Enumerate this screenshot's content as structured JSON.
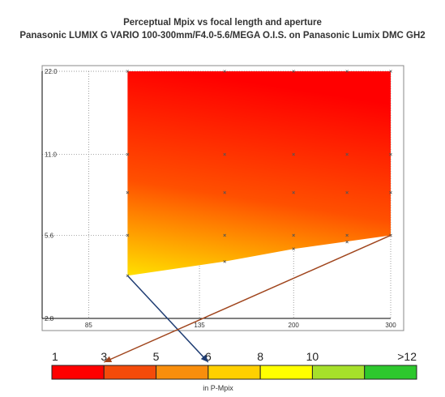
{
  "chart_data": {
    "type": "heatmap",
    "title": "Perceptual Mpix vs focal length and aperture",
    "subtitle": "Panasonic LUMIX G VARIO 100-300mm/F4.0-5.6/MEGA O.I.S. on Panasonic Lumix DMC GH2",
    "x_axis": {
      "scale": "log",
      "range": [
        70,
        300
      ],
      "ticks": [
        "85",
        "135",
        "200",
        "300"
      ]
    },
    "y_axis": {
      "scale": "log",
      "range": [
        2.8,
        22.0
      ],
      "ticks": [
        "2.8",
        "5.6",
        "11.0",
        "22.0"
      ]
    },
    "grid": true,
    "region": {
      "min_aperture": 22.0,
      "max_aperture_curve": [
        [
          100,
          4.0
        ],
        [
          150,
          4.5
        ],
        [
          200,
          5.0
        ],
        [
          300,
          5.6
        ]
      ]
    },
    "samples": [
      {
        "focal": 100,
        "aperture": 4.0,
        "mpix": 5.8
      },
      {
        "focal": 100,
        "aperture": 5.6,
        "mpix": 5.0
      },
      {
        "focal": 100,
        "aperture": 8.0,
        "mpix": 4.0
      },
      {
        "focal": 100,
        "aperture": 11.0,
        "mpix": 3.0
      },
      {
        "focal": 100,
        "aperture": 22.0,
        "mpix": 1.8
      },
      {
        "focal": 150,
        "aperture": 4.5,
        "mpix": 5.0
      },
      {
        "focal": 150,
        "aperture": 5.6,
        "mpix": 4.5
      },
      {
        "focal": 150,
        "aperture": 8.0,
        "mpix": 3.6
      },
      {
        "focal": 150,
        "aperture": 11.0,
        "mpix": 2.8
      },
      {
        "focal": 150,
        "aperture": 22.0,
        "mpix": 1.5
      },
      {
        "focal": 200,
        "aperture": 5.0,
        "mpix": 4.2
      },
      {
        "focal": 200,
        "aperture": 5.6,
        "mpix": 4.0
      },
      {
        "focal": 200,
        "aperture": 8.0,
        "mpix": 3.2
      },
      {
        "focal": 200,
        "aperture": 11.0,
        "mpix": 2.5
      },
      {
        "focal": 200,
        "aperture": 22.0,
        "mpix": 1.3
      },
      {
        "focal": 250,
        "aperture": 5.3,
        "mpix": 3.6
      },
      {
        "focal": 250,
        "aperture": 5.6,
        "mpix": 3.4
      },
      {
        "focal": 250,
        "aperture": 8.0,
        "mpix": 2.8
      },
      {
        "focal": 250,
        "aperture": 11.0,
        "mpix": 2.2
      },
      {
        "focal": 250,
        "aperture": 22.0,
        "mpix": 1.2
      },
      {
        "focal": 300,
        "aperture": 5.6,
        "mpix": 3.2
      },
      {
        "focal": 300,
        "aperture": 8.0,
        "mpix": 2.6
      },
      {
        "focal": 300,
        "aperture": 11.0,
        "mpix": 2.1
      },
      {
        "focal": 300,
        "aperture": 22.0,
        "mpix": 1.1
      }
    ],
    "colorscale": {
      "labels": [
        "1",
        "3",
        "5",
        "6",
        "8",
        "10",
        ">12"
      ],
      "colors": [
        "#ff0000",
        "#f44b0a",
        "#f98e0c",
        "#ffd000",
        "#ffff00",
        "#a6e02a",
        "#2dc82d"
      ],
      "unit_label": "in P-Mpix"
    },
    "annotations": [
      {
        "from": {
          "focal": 100,
          "aperture": 4.0
        },
        "to_value": 6,
        "color": "#1f3d73"
      },
      {
        "from": {
          "focal": 300,
          "aperture": 5.6
        },
        "to_value": 3,
        "color": "#a0451d"
      }
    ]
  }
}
